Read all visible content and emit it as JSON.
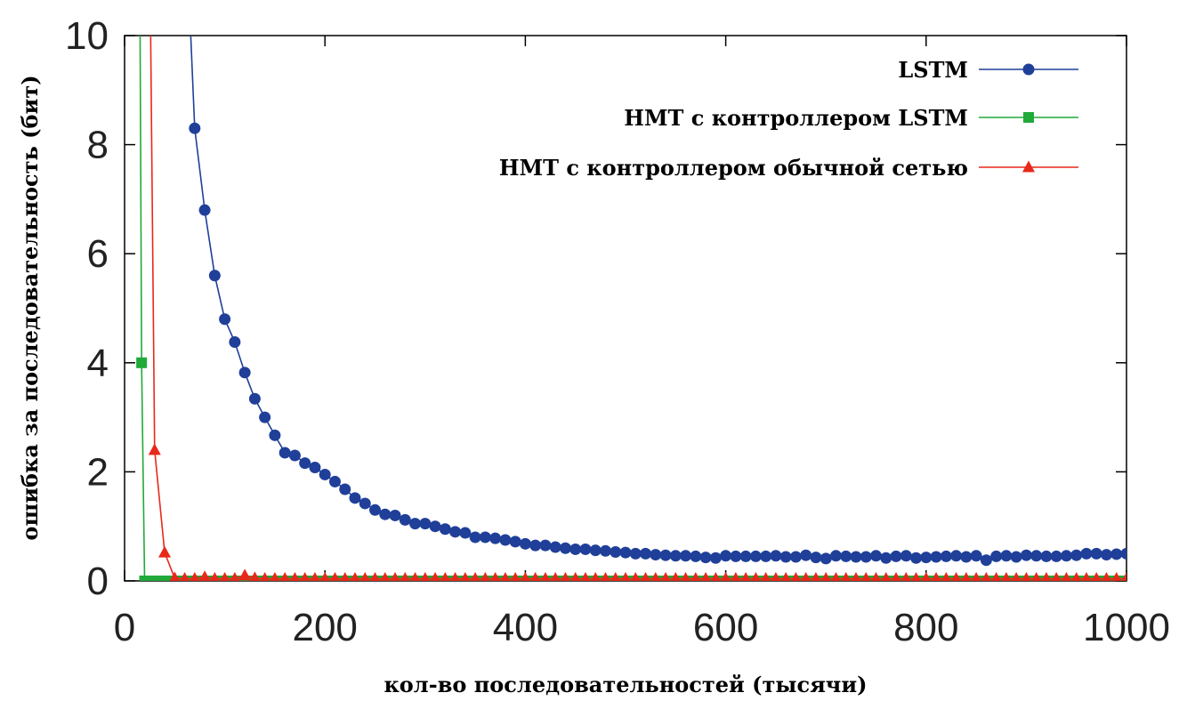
{
  "chart_data": {
    "type": "line",
    "title": "",
    "xlabel": "кол-во последовательностей (тысячи)",
    "ylabel": "ошибка за последовательность (бит)",
    "xlim": [
      0,
      1000
    ],
    "ylim": [
      0,
      10
    ],
    "xticks": [
      0,
      200,
      400,
      600,
      800,
      1000
    ],
    "yticks": [
      0,
      2,
      4,
      6,
      8,
      10
    ],
    "grid": false,
    "legend_position": "top-right",
    "series": [
      {
        "name": "LSTM",
        "color": "#1f3f99",
        "marker": "circle",
        "x": [
          60,
          70,
          80,
          90,
          100,
          110,
          120,
          130,
          140,
          150,
          160,
          170,
          180,
          190,
          200,
          210,
          220,
          230,
          240,
          250,
          260,
          270,
          280,
          290,
          300,
          310,
          320,
          330,
          340,
          350,
          360,
          370,
          380,
          390,
          400,
          410,
          420,
          430,
          440,
          450,
          460,
          470,
          480,
          490,
          500,
          510,
          520,
          530,
          540,
          550,
          560,
          570,
          580,
          590,
          600,
          610,
          620,
          630,
          640,
          650,
          660,
          670,
          680,
          690,
          700,
          710,
          720,
          730,
          740,
          750,
          760,
          770,
          780,
          790,
          800,
          810,
          820,
          830,
          840,
          850,
          860,
          870,
          880,
          890,
          900,
          910,
          920,
          930,
          940,
          950,
          960,
          970,
          980,
          990,
          1000
        ],
        "y": [
          12.6,
          8.3,
          6.8,
          5.6,
          4.8,
          4.38,
          3.82,
          3.34,
          3.0,
          2.67,
          2.35,
          2.3,
          2.16,
          2.08,
          1.95,
          1.82,
          1.68,
          1.52,
          1.42,
          1.3,
          1.22,
          1.2,
          1.12,
          1.05,
          1.05,
          1.0,
          0.95,
          0.9,
          0.88,
          0.8,
          0.8,
          0.78,
          0.75,
          0.72,
          0.68,
          0.65,
          0.65,
          0.62,
          0.6,
          0.58,
          0.58,
          0.56,
          0.55,
          0.53,
          0.52,
          0.5,
          0.5,
          0.48,
          0.47,
          0.46,
          0.46,
          0.45,
          0.43,
          0.42,
          0.46,
          0.45,
          0.45,
          0.45,
          0.45,
          0.46,
          0.44,
          0.44,
          0.47,
          0.43,
          0.41,
          0.46,
          0.45,
          0.44,
          0.44,
          0.46,
          0.42,
          0.45,
          0.46,
          0.42,
          0.43,
          0.44,
          0.45,
          0.46,
          0.44,
          0.46,
          0.38,
          0.45,
          0.46,
          0.44,
          0.47,
          0.46,
          0.45,
          0.45,
          0.46,
          0.47,
          0.5,
          0.5,
          0.48,
          0.49,
          0.5
        ]
      },
      {
        "name": "НМТ с контроллером LSTM",
        "color": "#1faa3a",
        "marker": "square",
        "x": [
          15,
          17,
          20,
          30,
          40,
          50,
          60,
          70,
          80,
          90,
          100,
          110,
          120,
          130,
          140,
          150,
          160,
          170,
          180,
          190,
          200,
          210,
          220,
          230,
          240,
          250,
          260,
          270,
          280,
          290,
          300,
          310,
          320,
          330,
          340,
          350,
          360,
          370,
          380,
          390,
          400,
          410,
          420,
          430,
          440,
          450,
          460,
          470,
          480,
          490,
          500,
          510,
          520,
          530,
          540,
          550,
          560,
          570,
          580,
          590,
          600,
          610,
          620,
          630,
          640,
          650,
          660,
          670,
          680,
          690,
          700,
          710,
          720,
          730,
          740,
          750,
          760,
          770,
          780,
          790,
          800,
          810,
          820,
          830,
          840,
          850,
          860,
          870,
          880,
          890,
          900,
          910,
          920,
          930,
          940,
          950,
          960,
          970,
          980,
          990,
          1000
        ],
        "y": [
          12,
          4.0,
          0,
          0,
          0,
          0,
          0,
          0,
          0,
          0,
          0,
          0,
          0,
          0,
          0,
          0,
          0,
          0,
          0,
          0,
          0,
          0,
          0,
          0,
          0,
          0,
          0,
          0,
          0,
          0,
          0,
          0,
          0,
          0,
          0,
          0,
          0,
          0,
          0,
          0,
          0,
          0,
          0,
          0,
          0,
          0,
          0,
          0,
          0,
          0,
          0,
          0,
          0,
          0,
          0,
          0,
          0,
          0,
          0,
          0,
          0,
          0,
          0,
          0,
          0,
          0,
          0,
          0,
          0,
          0,
          0,
          0,
          0,
          0,
          0,
          0,
          0,
          0,
          0,
          0,
          0,
          0,
          0,
          0,
          0,
          0,
          0,
          0,
          0,
          0,
          0,
          0,
          0,
          0,
          0,
          0,
          0,
          0,
          0,
          0,
          0
        ]
      },
      {
        "name": "НМТ с контроллером обычной сетью",
        "color": "#e8281a",
        "marker": "triangle",
        "x": [
          25,
          30,
          40,
          50,
          60,
          70,
          80,
          90,
          100,
          110,
          120,
          130,
          140,
          150,
          160,
          170,
          180,
          190,
          200,
          210,
          220,
          230,
          240,
          250,
          260,
          270,
          280,
          290,
          300,
          310,
          320,
          330,
          340,
          350,
          360,
          370,
          380,
          390,
          400,
          410,
          420,
          430,
          440,
          450,
          460,
          470,
          480,
          490,
          500,
          510,
          520,
          530,
          540,
          550,
          560,
          570,
          580,
          590,
          600,
          610,
          620,
          630,
          640,
          650,
          660,
          670,
          680,
          690,
          700,
          710,
          720,
          730,
          740,
          750,
          760,
          770,
          780,
          790,
          800,
          810,
          820,
          830,
          840,
          850,
          860,
          870,
          880,
          890,
          900,
          910,
          920,
          930,
          940,
          950,
          960,
          970,
          980,
          990,
          1000
        ],
        "y": [
          12,
          2.4,
          0.52,
          0.05,
          0.04,
          0.04,
          0.07,
          0.04,
          0.04,
          0.04,
          0.1,
          0.05,
          0.04,
          0.04,
          0.04,
          0.04,
          0.04,
          0.04,
          0.04,
          0.04,
          0.04,
          0.04,
          0.04,
          0.04,
          0.04,
          0.04,
          0.04,
          0.04,
          0.04,
          0.04,
          0.04,
          0.04,
          0.04,
          0.04,
          0.04,
          0.04,
          0.04,
          0.04,
          0.04,
          0.04,
          0.04,
          0.04,
          0.04,
          0.04,
          0.04,
          0.04,
          0.04,
          0.04,
          0.04,
          0.04,
          0.04,
          0.04,
          0.04,
          0.04,
          0.04,
          0.04,
          0.04,
          0.04,
          0.04,
          0.04,
          0.04,
          0.04,
          0.04,
          0.04,
          0.04,
          0.04,
          0.04,
          0.04,
          0.04,
          0.04,
          0.04,
          0.04,
          0.04,
          0.04,
          0.04,
          0.04,
          0.04,
          0.04,
          0.04,
          0.04,
          0.04,
          0.04,
          0.04,
          0.04,
          0.04,
          0.04,
          0.04,
          0.04,
          0.04,
          0.04,
          0.04,
          0.04,
          0.04,
          0.04,
          0.04,
          0.04,
          0.04,
          0.04,
          0.04
        ]
      }
    ]
  }
}
